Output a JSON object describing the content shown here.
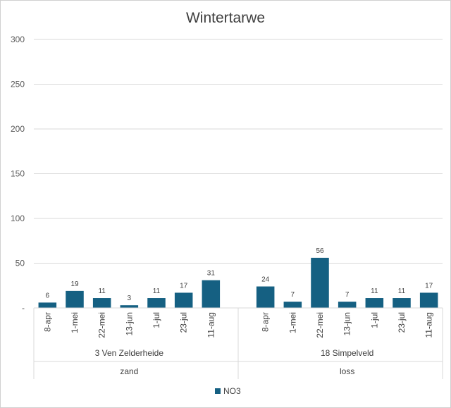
{
  "chart_data": {
    "type": "bar",
    "title": "Wintertarwe",
    "ylim": [
      0,
      300
    ],
    "yticks": [
      {
        "value": 300,
        "label": "300"
      },
      {
        "value": 250,
        "label": "250"
      },
      {
        "value": 200,
        "label": "200"
      },
      {
        "value": 150,
        "label": "150"
      },
      {
        "value": 100,
        "label": "100"
      },
      {
        "value": 50,
        "label": "50"
      },
      {
        "value": 0,
        "label": "-"
      }
    ],
    "grid": true,
    "legend_position": "bottom",
    "bar_color": "#156082",
    "groups": [
      {
        "label": "3 Ven Zelderheide",
        "sublabel": "zand",
        "categories": [
          "8-apr",
          "1-mei",
          "22-mei",
          "13-jun",
          "1-jul",
          "23-jul",
          "11-aug"
        ],
        "values": [
          6,
          19,
          11,
          3,
          11,
          17,
          31
        ]
      },
      {
        "label": "18 Simpelveld",
        "sublabel": "loss",
        "categories": [
          "8-apr",
          "1-mei",
          "22-mei",
          "13-jun",
          "1-jul",
          "23-jul",
          "11-aug"
        ],
        "values": [
          24,
          7,
          56,
          7,
          11,
          11,
          17
        ]
      }
    ],
    "series": [
      {
        "name": "NO3"
      }
    ]
  }
}
